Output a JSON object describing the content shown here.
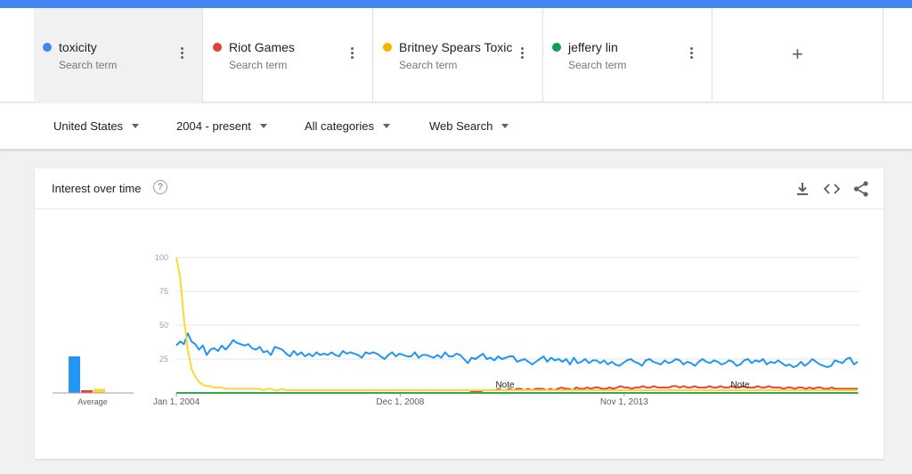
{
  "colors": {
    "toxicity": "#4285f4",
    "riot": "#db4437",
    "britney": "#f4b400",
    "jeffery": "#0f9d58",
    "blue_line": "#2196f3",
    "red_line": "#ea4335",
    "yellow_line": "#fdd835",
    "green_line": "#34a853"
  },
  "terms": [
    {
      "name": "toxicity",
      "sub": "Search term",
      "color": "#4285f4"
    },
    {
      "name": "Riot Games",
      "sub": "Search term",
      "color": "#db4437"
    },
    {
      "name": "Britney Spears Toxic",
      "sub": "Search term",
      "color": "#f4b400"
    },
    {
      "name": "jeffery lin",
      "sub": "Search term",
      "color": "#0f9d58"
    }
  ],
  "add_term_label": "+",
  "filters": {
    "region": "United States",
    "time": "2004 - present",
    "category": "All categories",
    "property": "Web Search"
  },
  "card": {
    "title": "Interest over time",
    "help": "?",
    "icons": [
      "download-icon",
      "embed-icon",
      "share-icon"
    ]
  },
  "chart_data": {
    "type": "line",
    "x_start": "2004-01",
    "x_end": "2019-01",
    "x_ticks": [
      "Jan 1, 2004",
      "Dec 1, 2008",
      "Nov 1, 2013"
    ],
    "y_ticks": [
      100,
      75,
      50,
      25
    ],
    "ylim": [
      0,
      100
    ],
    "grid": true,
    "notes": [
      "Note",
      "Note"
    ],
    "average_label": "Average",
    "averages": [
      {
        "name": "toxicity",
        "value": 27
      },
      {
        "name": "Riot Games",
        "value": 2
      },
      {
        "name": "Britney Spears Toxic",
        "value": 3
      },
      {
        "name": "jeffery lin",
        "value": 0
      }
    ],
    "series": [
      {
        "name": "toxicity",
        "values": [
          35,
          38,
          36,
          44,
          38,
          36,
          32,
          35,
          28,
          32,
          33,
          31,
          35,
          32,
          35,
          39,
          37,
          36,
          35,
          36,
          33,
          32,
          34,
          30,
          31,
          28,
          34,
          33,
          32,
          29,
          27,
          31,
          28,
          30,
          27,
          29,
          27,
          30,
          28,
          29,
          28,
          30,
          28,
          27,
          31,
          29,
          30,
          29,
          28,
          26,
          30,
          29,
          30,
          29,
          27,
          25,
          28,
          30,
          27,
          29,
          28,
          27,
          27,
          30,
          26,
          28,
          28,
          27,
          26,
          28,
          26,
          30,
          27,
          27,
          29,
          28,
          25,
          22,
          26,
          25,
          27,
          29,
          25,
          26,
          24,
          27,
          25,
          26,
          27,
          27,
          23,
          24,
          25,
          23,
          21,
          23,
          25,
          27,
          23,
          26,
          24,
          25,
          23,
          25,
          21,
          26,
          22,
          23,
          25,
          22,
          24,
          24,
          22,
          24,
          21,
          23,
          21,
          20,
          22,
          24,
          25,
          23,
          22,
          20,
          24,
          25,
          23,
          22,
          21,
          24,
          22,
          23,
          25,
          24,
          21,
          23,
          22,
          20,
          23,
          25,
          23,
          22,
          24,
          23,
          21,
          22,
          24,
          23,
          20,
          21,
          24,
          25,
          22,
          24,
          23,
          25,
          21,
          23,
          22,
          24,
          22,
          20,
          21,
          19,
          20,
          23,
          20,
          22,
          25,
          23,
          21,
          20,
          19,
          20,
          24,
          23,
          22,
          25,
          26,
          21,
          23
        ]
      },
      {
        "name": "Riot Games",
        "values": [
          0,
          0,
          0,
          0,
          0,
          0,
          0,
          0,
          0,
          0,
          0,
          0,
          0,
          0,
          0,
          0,
          0,
          0,
          0,
          0,
          0,
          0,
          0,
          0,
          0,
          0,
          0,
          0,
          0,
          0,
          0,
          0,
          0,
          0,
          0,
          0,
          0,
          0,
          0,
          0,
          0,
          0,
          0,
          0,
          0,
          0,
          0,
          0,
          0,
          0,
          0,
          0,
          0,
          0,
          0,
          0,
          0,
          0,
          0,
          0,
          0,
          0,
          0,
          0,
          0,
          0,
          0,
          0,
          0,
          0,
          0,
          0,
          0,
          0,
          0,
          0,
          0,
          0,
          0,
          0,
          1,
          1,
          1,
          2,
          2,
          2,
          2,
          3,
          2,
          2,
          3,
          2,
          3,
          3,
          2,
          3,
          2,
          3,
          3,
          3,
          2,
          3,
          2,
          3,
          4,
          3,
          3,
          2,
          4,
          3,
          3,
          4,
          3,
          4,
          4,
          3,
          3,
          4,
          3,
          4,
          5,
          4,
          4,
          3,
          4,
          4,
          5,
          4,
          4,
          5,
          4,
          4,
          4,
          4,
          5,
          5,
          4,
          5,
          4,
          4,
          5,
          4,
          4,
          4,
          5,
          4,
          4,
          5,
          4,
          4,
          5,
          4,
          4,
          5,
          4,
          4,
          4,
          5,
          4,
          4,
          5,
          4,
          4,
          4,
          3,
          4,
          4,
          3,
          4,
          4,
          3,
          4,
          3,
          4,
          4,
          3,
          3,
          4,
          3,
          3,
          3,
          3,
          3,
          3,
          3
        ]
      },
      {
        "name": "Britney Spears Toxic",
        "values": [
          100,
          85,
          55,
          32,
          18,
          12,
          8,
          6,
          5,
          5,
          4,
          4,
          4,
          3,
          3,
          3,
          3,
          3,
          3,
          3,
          3,
          3,
          3,
          2,
          3,
          3,
          2,
          2,
          3,
          2,
          2,
          2,
          2,
          2,
          2,
          2,
          2,
          2,
          2,
          2,
          2,
          2,
          2,
          2,
          2,
          2,
          2,
          2,
          2,
          2,
          2,
          2,
          2,
          2,
          2,
          2,
          2,
          2,
          2,
          2,
          2,
          2,
          2,
          2,
          2,
          2,
          2,
          2,
          2,
          2,
          2,
          2,
          2,
          2,
          2,
          2,
          2,
          2,
          2,
          2,
          2,
          2,
          2,
          2,
          2,
          2,
          2,
          2,
          2,
          2,
          2,
          2,
          2,
          2,
          2,
          2,
          2,
          2,
          2,
          2,
          2,
          2,
          2,
          2,
          2,
          2,
          2,
          2,
          2,
          2,
          2,
          2,
          2,
          2,
          2,
          2,
          2,
          2,
          2,
          2,
          2,
          2,
          2,
          2,
          2,
          2,
          2,
          2,
          2,
          2,
          2,
          2,
          2,
          2,
          2,
          2,
          2,
          2,
          2,
          2,
          2,
          2,
          2,
          2,
          2,
          2,
          2,
          2,
          2,
          2,
          2,
          2,
          2,
          2,
          2,
          2,
          2,
          2,
          2,
          2,
          2,
          2,
          2,
          2,
          2,
          2,
          2,
          2,
          2,
          2,
          2,
          2,
          2,
          2,
          2,
          2,
          2,
          2,
          2,
          2,
          2
        ]
      },
      {
        "name": "jeffery lin",
        "values": [
          0,
          0,
          0,
          0,
          0,
          0,
          0,
          0,
          0,
          0,
          0,
          0,
          0,
          0,
          0,
          0,
          0,
          0,
          0,
          0,
          0,
          0,
          0,
          0,
          0,
          0,
          0,
          0,
          0,
          0,
          0,
          0,
          0,
          0,
          0,
          0,
          0,
          0,
          0,
          0,
          0,
          0,
          0,
          0,
          0,
          0,
          0,
          0,
          0,
          0,
          0,
          0,
          0,
          0,
          0,
          0,
          0,
          0,
          0,
          0,
          0,
          0,
          0,
          0,
          0,
          0,
          0,
          0,
          0,
          0,
          0,
          0,
          0,
          0,
          0,
          0,
          0,
          0,
          0,
          0,
          0,
          0,
          0,
          0,
          0,
          0,
          0,
          0,
          0,
          0,
          0,
          0,
          0,
          0,
          0,
          0,
          0,
          0,
          0,
          0,
          0,
          0,
          0,
          0,
          0,
          0,
          0,
          0,
          0,
          0,
          0,
          0,
          0,
          0,
          0,
          0,
          0,
          0,
          0,
          0,
          0,
          0,
          0,
          0,
          0,
          0,
          0,
          0,
          0,
          0,
          0,
          0,
          0,
          0,
          0,
          0,
          0,
          0,
          0,
          0,
          0,
          0,
          0,
          0,
          0,
          0,
          0,
          0,
          0,
          0,
          0,
          0,
          0,
          0,
          0,
          0,
          0,
          0,
          0,
          0,
          0,
          0,
          0,
          0,
          0,
          0,
          0,
          0,
          0,
          0,
          0,
          0,
          0,
          0,
          0,
          0,
          0,
          0,
          0,
          0,
          0
        ]
      }
    ]
  }
}
